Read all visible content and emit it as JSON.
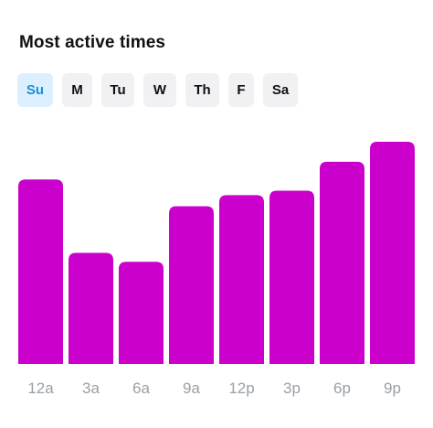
{
  "header": {
    "title": "Most active times"
  },
  "days": [
    {
      "label": "Su",
      "selected": true
    },
    {
      "label": "M",
      "selected": false
    },
    {
      "label": "Tu",
      "selected": false
    },
    {
      "label": "W",
      "selected": false
    },
    {
      "label": "Th",
      "selected": false
    },
    {
      "label": "F",
      "selected": false
    },
    {
      "label": "Sa",
      "selected": false
    }
  ],
  "colors": {
    "bar": "#cc00cc",
    "selected_tab_bg": "#dcefff",
    "selected_tab_text": "#1a8fd6",
    "tab_bg": "#f1f1f3",
    "tick_text": "#9aa0a6"
  },
  "chart_data": {
    "type": "bar",
    "categories": [
      "12a",
      "3a",
      "6a",
      "9a",
      "12p",
      "3p",
      "6p",
      "9p"
    ],
    "values": [
      83,
      50,
      46,
      71,
      76,
      78,
      91,
      100
    ],
    "ylim": [
      0,
      100
    ],
    "grid": false,
    "legend": "none"
  }
}
